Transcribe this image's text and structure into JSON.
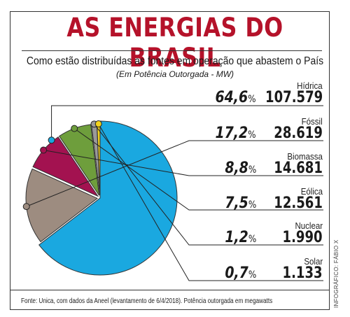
{
  "header": {
    "title": "AS ENERGIAS DO BRASIL",
    "subtitle": "Como estão distribuídas as fontes em operação que abastem o País",
    "unit_note": "(Em Potência Outorgada - MW)"
  },
  "chart_data": {
    "type": "pie",
    "unit": "MW",
    "slices": [
      {
        "name": "Hídrica",
        "percent_label": "64,6",
        "value_label": "107.579",
        "value": 107579,
        "percent": 64.6,
        "color": "#1aa8e0"
      },
      {
        "name": "Fóssil",
        "percent_label": "17,2",
        "value_label": "28.619",
        "value": 28619,
        "percent": 17.2,
        "color": "#9d8c80"
      },
      {
        "name": "Biomassa",
        "percent_label": "8,8",
        "value_label": "14.681",
        "value": 14681,
        "percent": 8.8,
        "color": "#a31250"
      },
      {
        "name": "Eólica",
        "percent_label": "7,5",
        "value_label": "12.561",
        "value": 12561,
        "percent": 7.5,
        "color": "#6e9e3c"
      },
      {
        "name": "Nuclear",
        "percent_label": "1,2",
        "value_label": "1.990",
        "value": 1990,
        "percent": 1.2,
        "color": "#9a9a9a"
      },
      {
        "name": "Solar",
        "percent_label": "0,7",
        "value_label": "1.133",
        "value": 1133,
        "percent": 0.7,
        "color": "#f2d21e"
      }
    ],
    "percent_sign": "%"
  },
  "footer": {
    "source": "Fonte: Unica, com dados da Aneel (levantamento de 6/4/2018). Potência outorgada em megawatts",
    "credit": "INFOGRÁFICO: FÁBIO X"
  }
}
